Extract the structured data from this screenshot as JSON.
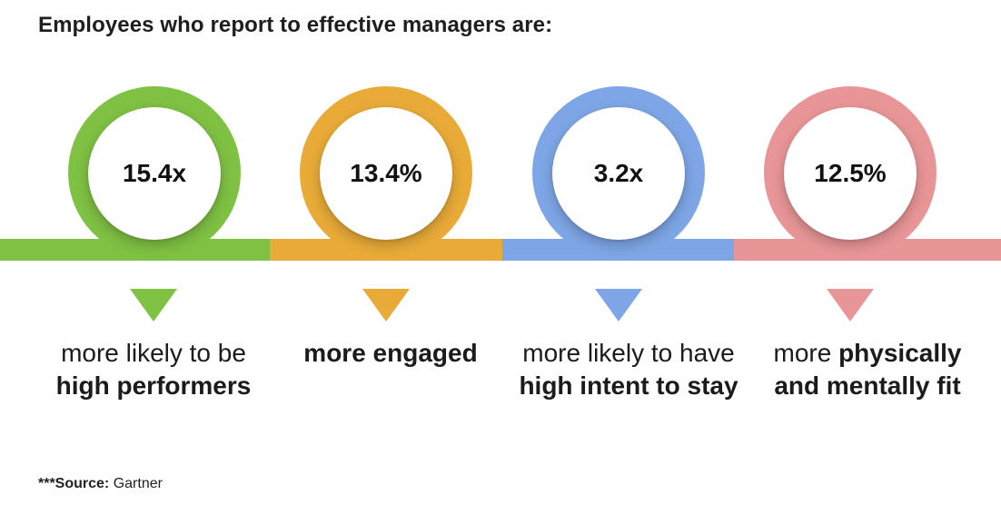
{
  "title": "Employees who report to effective managers are:",
  "stats": [
    {
      "value": "15.4x",
      "color": "#7fc143",
      "line1": "more likely to be",
      "line2": "high performers"
    },
    {
      "value": "13.4%",
      "color": "#e9ab37",
      "line1_bold": "more engaged"
    },
    {
      "value": "3.2x",
      "color": "#7ea6e6",
      "line1": "more likely to have",
      "line2": "high intent to stay"
    },
    {
      "value": "12.5%",
      "color": "#e89597",
      "line1_prefix": "more ",
      "line1_bold": "physically",
      "line2": "and mentally fit"
    }
  ],
  "source": {
    "label": "***Source:",
    "text": "Gartner"
  }
}
